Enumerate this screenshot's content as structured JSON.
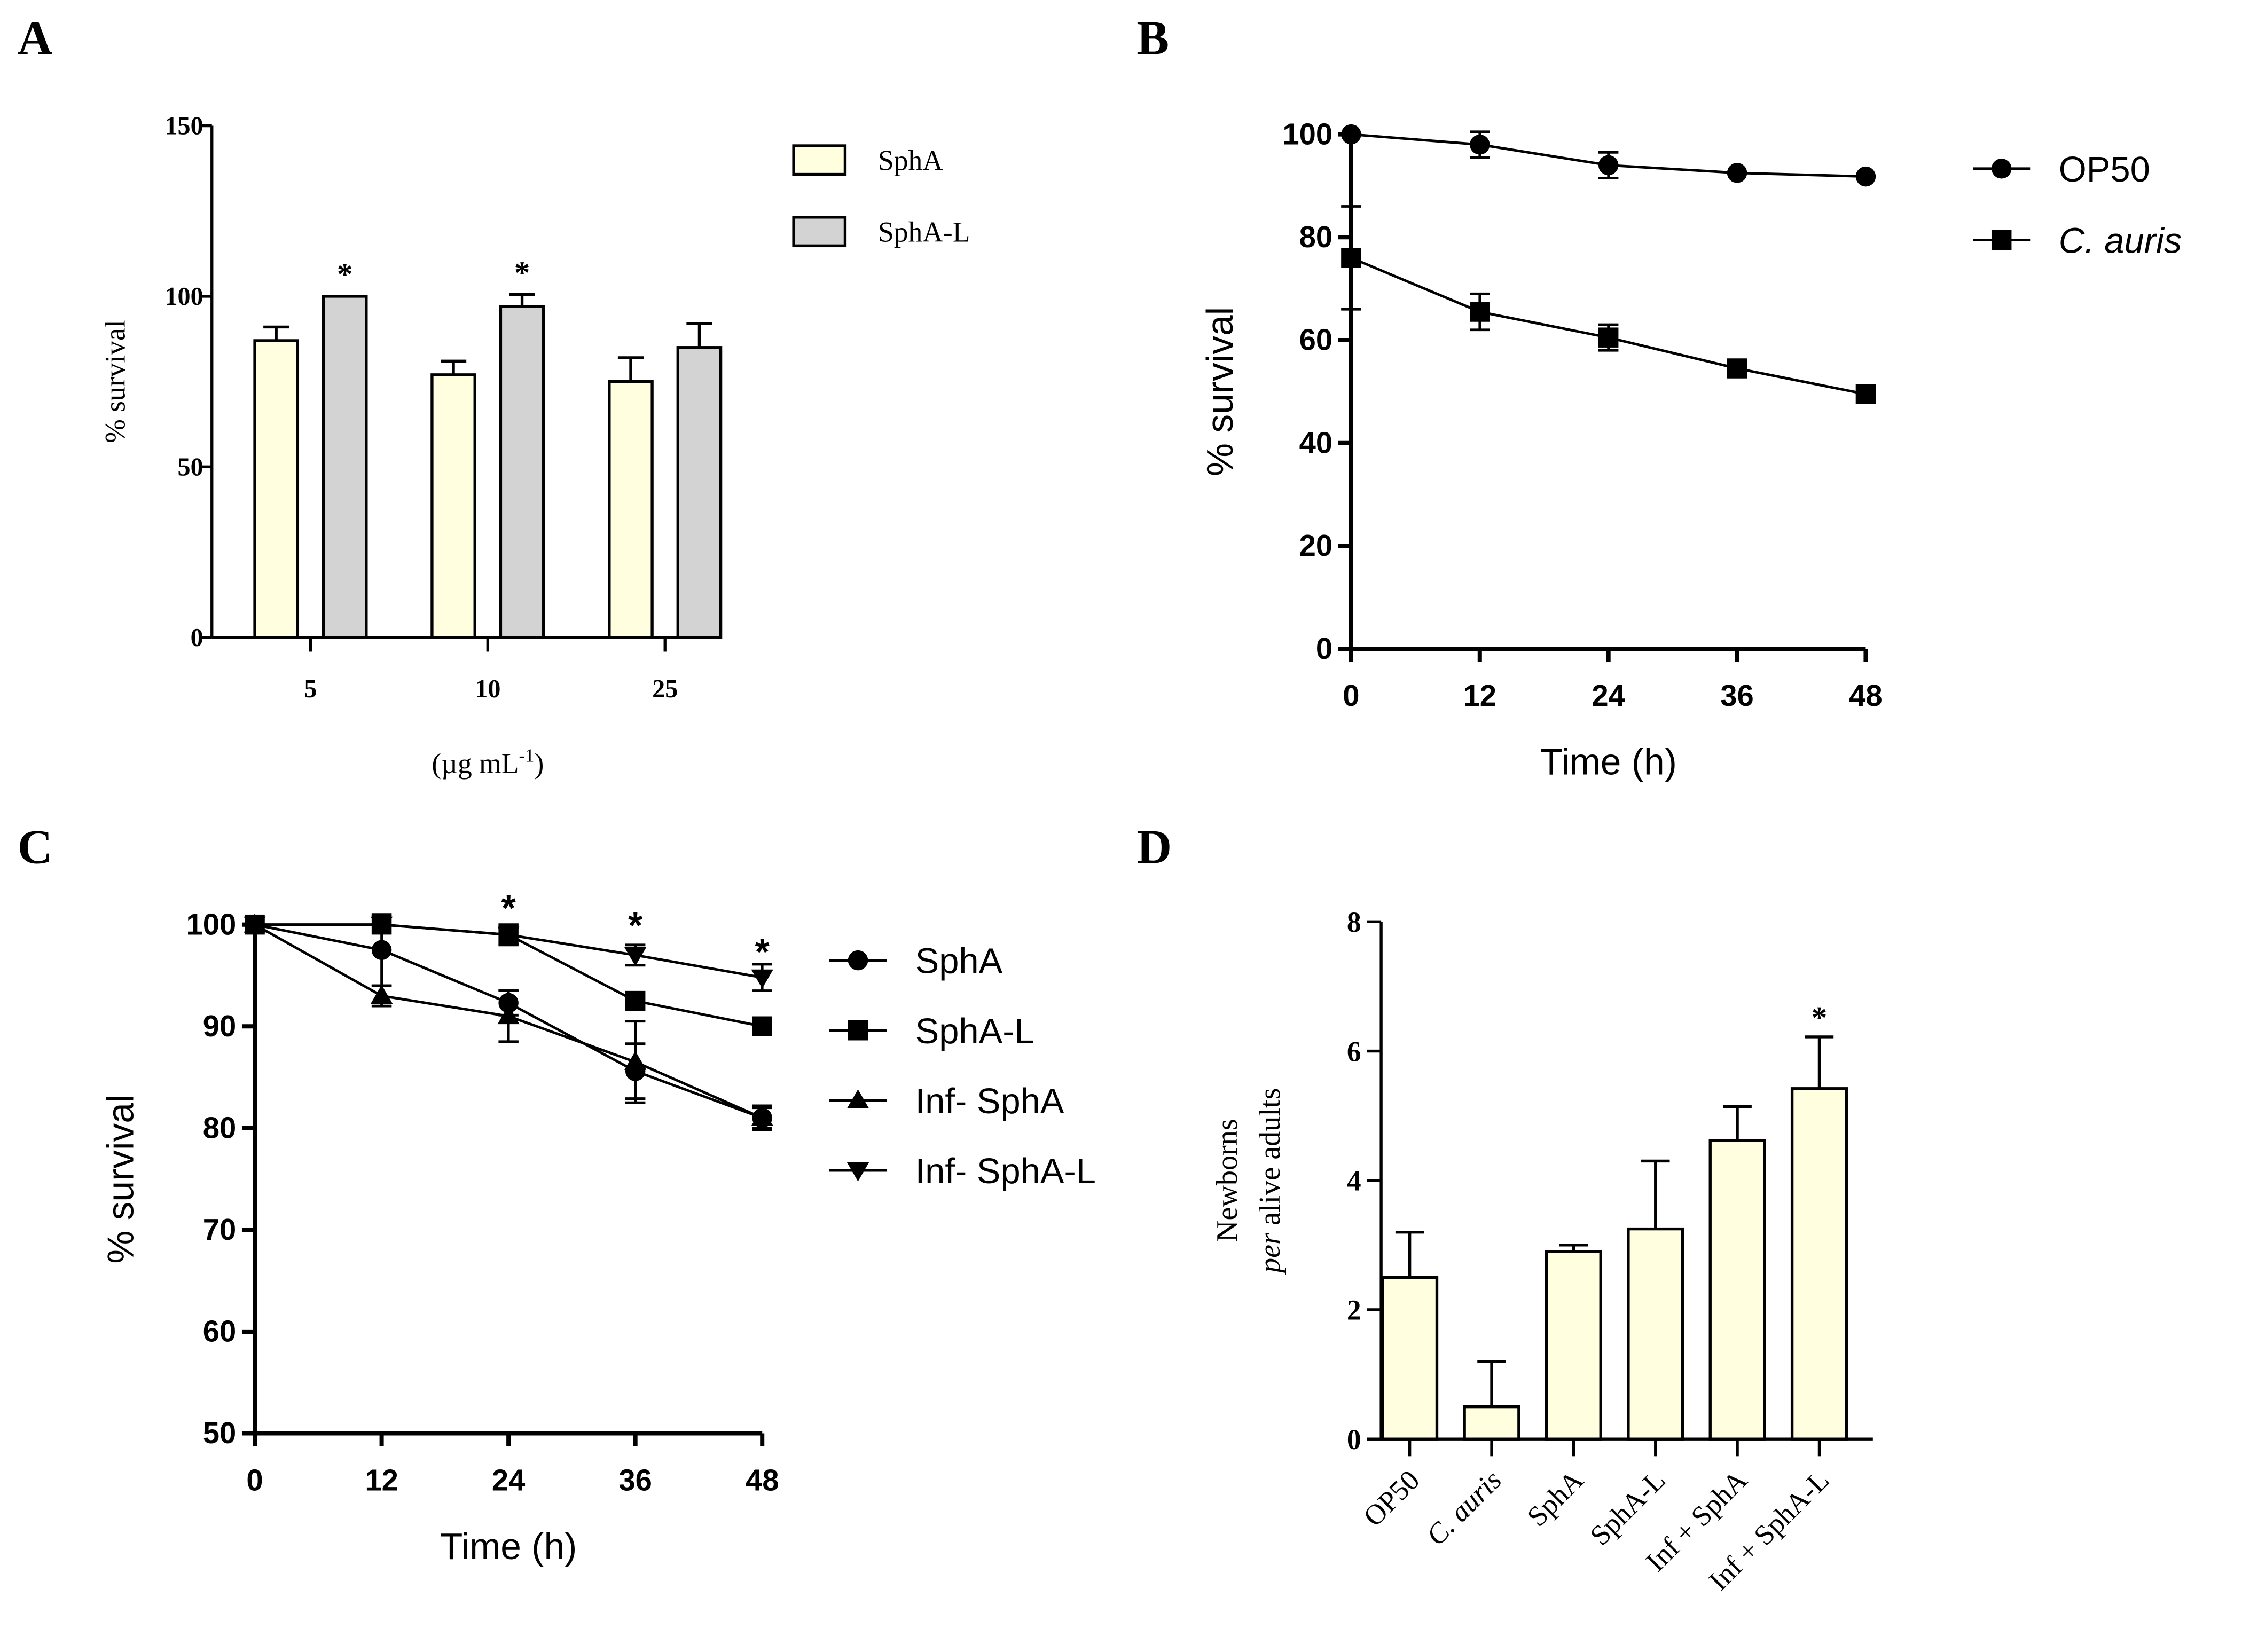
{
  "panel_labels": [
    "A",
    "B",
    "C",
    "D"
  ],
  "chart_data": [
    {
      "type": "bar",
      "panel": "A",
      "categories": [
        "5",
        "10",
        "25"
      ],
      "xlabel": "(µg mL",
      "xlabel_sup": "-1",
      "xlabel_end": ")",
      "ylabel": "% survival",
      "ylim": [
        0,
        150
      ],
      "yticks": [
        0,
        50,
        100,
        150
      ],
      "series": [
        {
          "name": "SphA",
          "values": [
            87,
            77,
            75
          ],
          "errors": [
            4,
            4,
            7
          ],
          "color": "#FFFFE0"
        },
        {
          "name": "SphA-L",
          "values": [
            100,
            97,
            85
          ],
          "errors": [
            0,
            3.5,
            7
          ],
          "color": "#D3D3D3"
        }
      ],
      "annotations": [
        {
          "series": "SphA-L",
          "category": "5",
          "text": "*"
        },
        {
          "series": "SphA-L",
          "category": "10",
          "text": "*"
        }
      ],
      "legend": "top-right"
    },
    {
      "type": "line",
      "panel": "B",
      "x": [
        0,
        12,
        24,
        36,
        48
      ],
      "xlabel": "Time (h)",
      "ylabel": "% survival",
      "ylim": [
        0,
        100
      ],
      "yticks": [
        0,
        20,
        40,
        60,
        80,
        100
      ],
      "series": [
        {
          "name": "OP50",
          "marker": "circle",
          "values": [
            100,
            98,
            94,
            92.5,
            91.8
          ],
          "errors": [
            0,
            2.5,
            2.5,
            0,
            0
          ]
        },
        {
          "name": "C.  auris",
          "italic": true,
          "marker": "square",
          "values": [
            76,
            65.5,
            60.5,
            54.5,
            49.5
          ],
          "errors": [
            10,
            3.5,
            2.5,
            0,
            0
          ]
        }
      ],
      "legend": "right"
    },
    {
      "type": "line",
      "panel": "C",
      "x": [
        0,
        12,
        24,
        36,
        48
      ],
      "xlabel": "Time (h)",
      "ylabel": "% survival",
      "ylim": [
        50,
        100
      ],
      "yticks": [
        50,
        60,
        70,
        80,
        90,
        100
      ],
      "series": [
        {
          "name": "SphA",
          "marker": "circle",
          "values": [
            100,
            97.5,
            92.3,
            85.6,
            81
          ],
          "errors": [
            0,
            3.5,
            1.2,
            2.7,
            1.2
          ]
        },
        {
          "name": "SphA-L",
          "marker": "square",
          "values": [
            100,
            100,
            99,
            92.5,
            90
          ],
          "errors": [
            0,
            0,
            1,
            0,
            0
          ]
        },
        {
          "name": "Inf- SphA",
          "marker": "triangle-up",
          "values": [
            100,
            93,
            91,
            86.5,
            81
          ],
          "errors": [
            0,
            1,
            2.5,
            4,
            1
          ]
        },
        {
          "name": "Inf- SphA-L",
          "marker": "triangle-down",
          "values": [
            100,
            100,
            99,
            97,
            94.8
          ],
          "errors": [
            0,
            0,
            0,
            1,
            1.3
          ]
        }
      ],
      "annotations": [
        {
          "x": 24,
          "y": 101.5,
          "text": "*"
        },
        {
          "x": 36,
          "y": 99.8,
          "text": "*"
        },
        {
          "x": 48,
          "y": 97.2,
          "text": "*"
        }
      ],
      "legend": "right"
    },
    {
      "type": "bar",
      "panel": "D",
      "categories": [
        "OP50",
        "C. auris",
        "SphA",
        "SphA-L",
        "Inf + SphA",
        "Inf + SphA-L"
      ],
      "ylabel_line1": "Newborns",
      "ylabel_line2_italic": "per",
      "ylabel_line2": " alive adults",
      "ylim": [
        0,
        8
      ],
      "yticks": [
        0,
        2,
        4,
        6,
        8
      ],
      "values": [
        2.5,
        0.5,
        2.9,
        3.25,
        4.62,
        5.42
      ],
      "errors": [
        0.7,
        0.7,
        0.1,
        1.05,
        0.52,
        0.8
      ],
      "color": "#FFFFE0",
      "annotations": [
        {
          "category": "Inf + SphA-L",
          "text": "*"
        }
      ]
    }
  ]
}
